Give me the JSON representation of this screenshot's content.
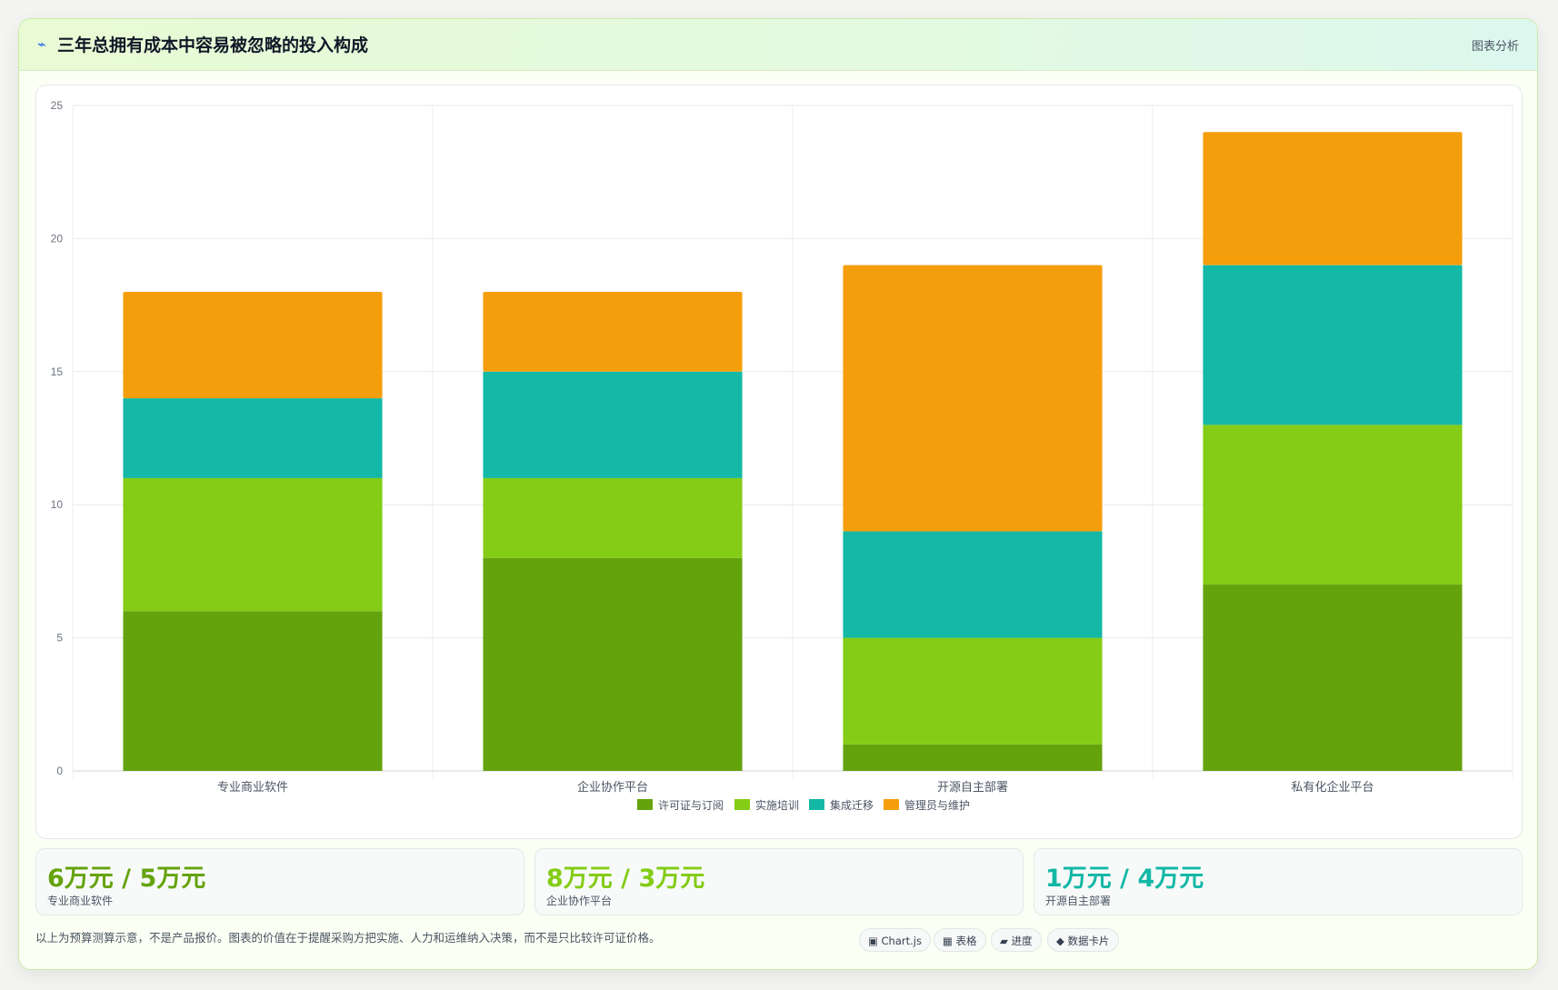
{
  "header": {
    "icon": "bolt-icon",
    "title": "三年总拥有成本中容易被忽略的投入构成",
    "badge": "图表分析"
  },
  "chart_data": {
    "type": "bar",
    "stacked": true,
    "categories": [
      "专业商业软件",
      "企业协作平台",
      "开源自主部署",
      "私有化企业平台"
    ],
    "series": [
      {
        "name": "许可证与订阅",
        "color": "#65a30d",
        "values": [
          6,
          8,
          1,
          7
        ]
      },
      {
        "name": "实施培训",
        "color": "#84cc16",
        "values": [
          5,
          3,
          4,
          6
        ]
      },
      {
        "name": "集成迁移",
        "color": "#14b8a6",
        "values": [
          3,
          4,
          4,
          6
        ]
      },
      {
        "name": "管理员与维护",
        "color": "#f59e0b",
        "values": [
          4,
          3,
          10,
          5
        ]
      }
    ],
    "ylim": [
      0,
      25
    ],
    "yticks": [
      0,
      5,
      10,
      15,
      20,
      25
    ],
    "grid": true,
    "legend_position": "bottom"
  },
  "stats": [
    {
      "value": "6万元 / 5万元",
      "label": "专业商业软件",
      "color": "#65a30d"
    },
    {
      "value": "8万元 / 3万元",
      "label": "企业协作平台",
      "color": "#84cc16"
    },
    {
      "value": "1万元 / 4万元",
      "label": "开源自主部署",
      "color": "#14b8a6"
    }
  ],
  "footnote": "以上为预算测算示意，不是产品报价。图表的价值在于提醒采购方把实施、人力和运维纳入决策，而不是只比较许可证价格。",
  "chips": [
    {
      "label": "▣ Chart.js",
      "icon": "chart-icon"
    },
    {
      "label": "▦ 表格",
      "icon": "table-icon"
    },
    {
      "label": "▰ 进度",
      "icon": "progress-icon"
    },
    {
      "label": "◆ 数据卡片",
      "icon": "card-icon"
    }
  ]
}
